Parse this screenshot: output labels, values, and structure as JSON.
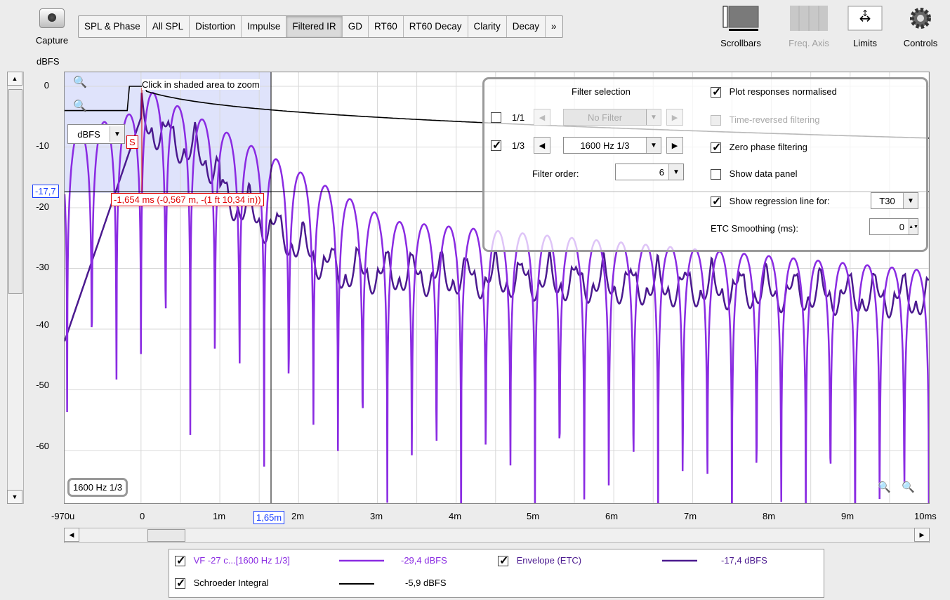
{
  "toolbar": {
    "capture_label": "Capture",
    "tabs": [
      "SPL & Phase",
      "All SPL",
      "Distortion",
      "Impulse",
      "Filtered IR",
      "GD",
      "RT60",
      "RT60 Decay",
      "Clarity",
      "Decay",
      "»"
    ],
    "active_tab": "Filtered IR",
    "tools": [
      {
        "label": "Scrollbars",
        "icon": "scrollbars-icon",
        "enabled": true
      },
      {
        "label": "Freq. Axis",
        "icon": "freq-axis-icon",
        "enabled": false
      },
      {
        "label": "Limits",
        "icon": "limits-icon",
        "enabled": true
      },
      {
        "label": "Controls",
        "icon": "gear-icon",
        "enabled": true
      }
    ]
  },
  "plot": {
    "y_unit": "dBFS",
    "y_ticks": [
      "0",
      "-10",
      "-20",
      "-30",
      "-40",
      "-50",
      "-60"
    ],
    "x_ticks": [
      "-970u",
      "0",
      "1m",
      "2m",
      "3m",
      "4m",
      "5m",
      "6m",
      "7m",
      "8m",
      "9m",
      "10ms"
    ],
    "zoom_hint": "Click in shaded area to zoom",
    "unit_select": "dBFS",
    "cursor_y_label": "-17,7",
    "cursor_x_label": "1,65m",
    "cursor_readout": "-1,654 ms (-0,567 m, -(1 ft 10,34 in))",
    "peak_label": "S",
    "filter_badge": "1600 Hz 1/3",
    "colors": {
      "ir": "#8a2be2",
      "etc": "#4b1a8f",
      "schroeder": "#000000",
      "cursor_red": "#e00000",
      "cursor_blue": "#1a3fff"
    }
  },
  "filter_panel": {
    "title": "Filter selection",
    "octave_row": {
      "label": "1/1",
      "checked": false,
      "value": "No Filter",
      "enabled": false
    },
    "third_row": {
      "label": "1/3",
      "checked": true,
      "value": "1600 Hz 1/3",
      "enabled": true
    },
    "filter_order_label": "Filter order:",
    "filter_order_value": "6",
    "options": [
      {
        "label": "Plot responses normalised",
        "checked": true,
        "enabled": true
      },
      {
        "label": "Time-reversed filtering",
        "checked": false,
        "enabled": false
      },
      {
        "label": "Zero phase filtering",
        "checked": true,
        "enabled": true
      },
      {
        "label": "Show data panel",
        "checked": false,
        "enabled": true
      },
      {
        "label": "Show regression line for:",
        "checked": true,
        "enabled": true
      }
    ],
    "regression_value": "T30",
    "etc_smoothing_label": "ETC Smoothing (ms):",
    "etc_smoothing_value": "0"
  },
  "legend": {
    "items": [
      {
        "label": "VF -27 c...[1600 Hz 1/3]",
        "value": "-29,4 dBFS",
        "color": "#8a2be2",
        "checked": true
      },
      {
        "label": "Envelope (ETC)",
        "value": "-17,4 dBFS",
        "color": "#4b1a8f",
        "checked": true
      },
      {
        "label": "Schroeder Integral",
        "value": "-5,9 dBFS",
        "color": "#000000",
        "checked": true
      }
    ]
  }
}
